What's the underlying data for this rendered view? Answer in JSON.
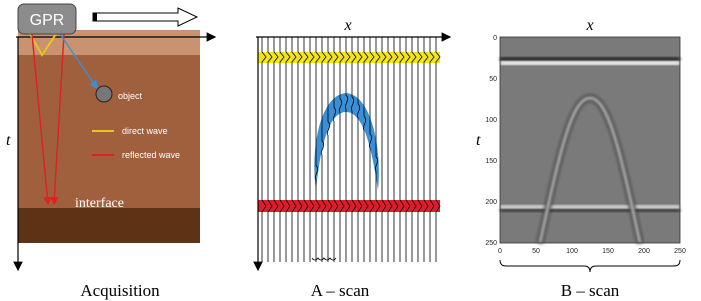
{
  "gpr": "GPR",
  "object": "object",
  "legend": {
    "direct": "direct wave",
    "reflected": "reflected wave"
  },
  "interface": "interface",
  "axes": {
    "x": "x",
    "t": "t"
  },
  "captions": {
    "acquisition": "Acquisition",
    "ascan": "A – scan",
    "bscan": "B – scan"
  },
  "bscan": {
    "xticks": [
      0,
      50,
      100,
      150,
      200,
      250
    ],
    "yticks": [
      0,
      50,
      100,
      150,
      200,
      250
    ]
  }
}
